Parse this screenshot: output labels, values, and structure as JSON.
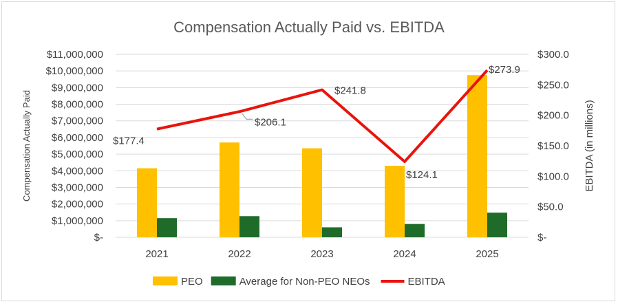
{
  "chart_data": {
    "type": "bar",
    "title": "Compensation Actually Paid vs. EBITDA",
    "categories": [
      "2021",
      "2022",
      "2023",
      "2024",
      "2025"
    ],
    "ylabel": "Compensation Actually Paid",
    "ylabel_right": "EBITDA (in millions)",
    "ylim": [
      0,
      11000000
    ],
    "ylim_right": [
      0,
      300
    ],
    "y_ticks": [
      "$-",
      "$1,000,000",
      "$2,000,000",
      "$3,000,000",
      "$4,000,000",
      "$5,000,000",
      "$6,000,000",
      "$7,000,000",
      "$8,000,000",
      "$9,000,000",
      "$10,000,000",
      "$11,000,000"
    ],
    "y_right_ticks": [
      "$-",
      "$50.0",
      "$100.0",
      "$150.0",
      "$200.0",
      "$250.0",
      "$300.0"
    ],
    "grid": true,
    "legend_position": "bottom",
    "series": [
      {
        "name": "PEO",
        "type": "bar",
        "axis": "left",
        "color": "#FFC000",
        "values": [
          4150000,
          5700000,
          5350000,
          4300000,
          9750000
        ]
      },
      {
        "name": "Average for Non-PEO NEOs",
        "type": "bar",
        "axis": "left",
        "color": "#1E6B2A",
        "values": [
          1150000,
          1270000,
          600000,
          800000,
          1480000
        ]
      },
      {
        "name": "EBITDA",
        "type": "line",
        "axis": "right",
        "color": "#E8140C",
        "values": [
          177.4,
          206.1,
          241.8,
          124.1,
          273.9
        ],
        "labels": [
          "$177.4",
          "$206.1",
          "$241.8",
          "$124.1",
          "$273.9"
        ]
      }
    ]
  }
}
